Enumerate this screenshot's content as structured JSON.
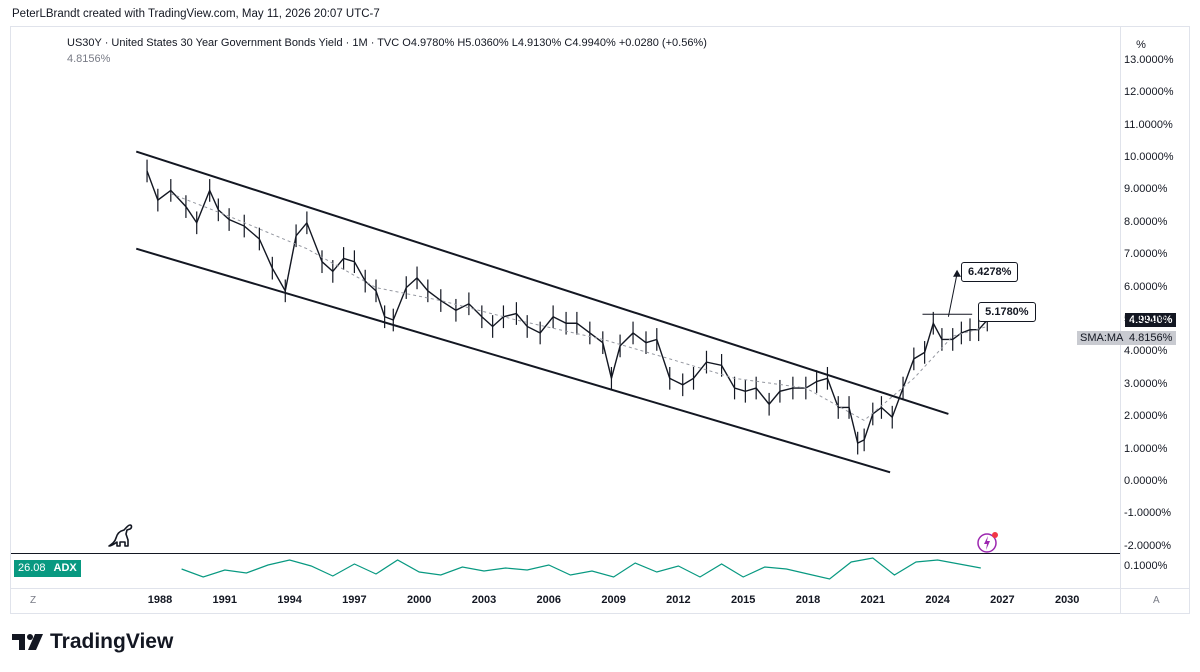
{
  "header": {
    "credit": "PeterLBrandt created with TradingView.com, May 11, 2026 20:07 UTC-7"
  },
  "legend": {
    "symbol": "US30Y · United States 30 Year Government Bonds Yield · 1M · TVC",
    "open": "O4.9780%",
    "high": "H5.0360%",
    "low": "L4.9130%",
    "close": "C4.9940%",
    "change": "+0.0280 (+0.56%)",
    "sma_value": "4.8156%"
  },
  "scale_button": "%",
  "price_tag": {
    "value": "4.9940%",
    "color": "#131722"
  },
  "sma_tag": {
    "label": "SMA:MA",
    "value": "4.8156%"
  },
  "annotations": {
    "peak_label": "6.4278%",
    "level_label": "5.1780%"
  },
  "adx": {
    "value": "26.08",
    "label": "ADX",
    "axis_value": "0.1000%",
    "color": "#089981"
  },
  "buttons": {
    "z": "Z",
    "a": "A"
  },
  "brand": {
    "name": "TradingView"
  },
  "chart_data": {
    "type": "line",
    "title": "US30Y · United States 30 Year Government Bonds Yield · 1M · TVC",
    "y_tick_labels": [
      "13.0000%",
      "12.0000%",
      "11.0000%",
      "10.0000%",
      "9.0000%",
      "8.0000%",
      "7.0000%",
      "6.0000%",
      "5.0000%",
      "4.0000%",
      "3.0000%",
      "2.0000%",
      "1.0000%",
      "0.0000%",
      "-1.0000%",
      "-2.0000%"
    ],
    "x_tick_labels": [
      "1988",
      "1991",
      "1994",
      "1997",
      "2000",
      "2003",
      "2006",
      "2009",
      "2012",
      "2015",
      "2018",
      "2021",
      "2024",
      "2027",
      "2030"
    ],
    "ylim": [
      -2,
      13
    ],
    "xlim": [
      1985.2,
      2031.2
    ],
    "series": [
      {
        "name": "US30Y",
        "x": [
          1987.4,
          1987.9,
          1988.5,
          1989.2,
          1989.7,
          1990.3,
          1990.7,
          1991.2,
          1991.9,
          1992.6,
          1993.2,
          1993.8,
          1994.3,
          1994.8,
          1995.5,
          1996.0,
          1996.5,
          1997.0,
          1997.5,
          1998.0,
          1998.4,
          1998.8,
          1999.4,
          1999.9,
          2000.4,
          2001.0,
          2001.7,
          2002.3,
          2002.9,
          2003.4,
          2003.9,
          2004.5,
          2005.0,
          2005.6,
          2006.2,
          2006.8,
          2007.3,
          2007.9,
          2008.5,
          2008.9,
          2009.3,
          2009.9,
          2010.5,
          2011.0,
          2011.6,
          2012.2,
          2012.7,
          2013.3,
          2014.0,
          2014.6,
          2015.1,
          2015.6,
          2016.2,
          2016.7,
          2017.3,
          2017.9,
          2018.4,
          2018.9,
          2019.4,
          2019.9,
          2020.3,
          2020.6,
          2021.0,
          2021.4,
          2021.9,
          2022.4,
          2022.9,
          2023.4,
          2023.8,
          2024.2,
          2024.7,
          2025.1,
          2025.5,
          2025.9,
          2026.3
        ],
        "y": [
          9.6,
          8.7,
          9.0,
          8.5,
          8.0,
          9.0,
          8.4,
          8.1,
          7.9,
          7.5,
          6.6,
          5.9,
          7.6,
          8.0,
          6.8,
          6.5,
          6.9,
          6.8,
          6.2,
          5.9,
          5.1,
          5.0,
          6.0,
          6.3,
          5.9,
          5.6,
          5.3,
          5.5,
          5.1,
          4.8,
          5.1,
          5.2,
          4.8,
          4.6,
          5.1,
          4.9,
          4.9,
          4.6,
          4.3,
          3.2,
          4.2,
          4.6,
          4.3,
          4.4,
          3.2,
          3.0,
          3.2,
          3.7,
          3.6,
          2.9,
          2.8,
          2.9,
          2.4,
          2.8,
          2.9,
          2.9,
          3.1,
          3.2,
          2.3,
          2.3,
          1.2,
          1.3,
          2.1,
          2.3,
          2.0,
          2.9,
          3.8,
          4.0,
          4.9,
          4.4,
          4.4,
          4.6,
          4.7,
          4.7,
          5.0
        ]
      },
      {
        "name": "SMA:MA",
        "x": [
          1988.5,
          1991.2,
          1994.8,
          1998.0,
          2001.0,
          2004.5,
          2008.5,
          2011.6,
          2014.6,
          2017.9,
          2020.6,
          2022.9,
          2024.7,
          2026.3
        ],
        "y": [
          8.9,
          8.2,
          7.2,
          6.0,
          5.6,
          5.0,
          4.4,
          3.8,
          3.2,
          2.9,
          1.9,
          3.2,
          4.5,
          4.8
        ]
      }
    ],
    "trendlines": [
      {
        "name": "upper-channel",
        "x": [
          1986.9,
          2024.5
        ],
        "y": [
          10.2,
          2.1
        ]
      },
      {
        "name": "lower-channel",
        "x": [
          1986.9,
          2021.8
        ],
        "y": [
          7.2,
          0.3
        ]
      },
      {
        "name": "level-5.178",
        "x": [
          2023.3,
          2025.6
        ],
        "y": [
          5.178,
          5.178
        ]
      },
      {
        "name": "peak-6.4278",
        "x": [
          2024.5,
          2024.9
        ],
        "y": [
          5.1,
          6.4278
        ]
      }
    ],
    "adx_series": {
      "name": "ADX",
      "x": [
        1989.0,
        1990.0,
        1991.0,
        1992.0,
        1993.0,
        1994.0,
        1995.0,
        1996.0,
        1997.0,
        1998.0,
        1999.0,
        2000.0,
        2001.0,
        2002.0,
        2003.0,
        2004.0,
        2005.0,
        2006.0,
        2007.0,
        2008.0,
        2009.0,
        2010.0,
        2011.0,
        2012.0,
        2013.0,
        2014.0,
        2015.0,
        2016.0,
        2017.0,
        2018.0,
        2019.0,
        2020.0,
        2021.0,
        2022.0,
        2023.0,
        2024.0,
        2025.0,
        2026.0
      ],
      "y": [
        26,
        18,
        25,
        22,
        30,
        35,
        29,
        19,
        31,
        21,
        35,
        23,
        20,
        28,
        24,
        27,
        25,
        30,
        20,
        24,
        18,
        32,
        23,
        29,
        18,
        31,
        18,
        28,
        26,
        21,
        16,
        33,
        37,
        20,
        33,
        35,
        31,
        27
      ]
    },
    "grid": false,
    "legend": "top-left"
  }
}
